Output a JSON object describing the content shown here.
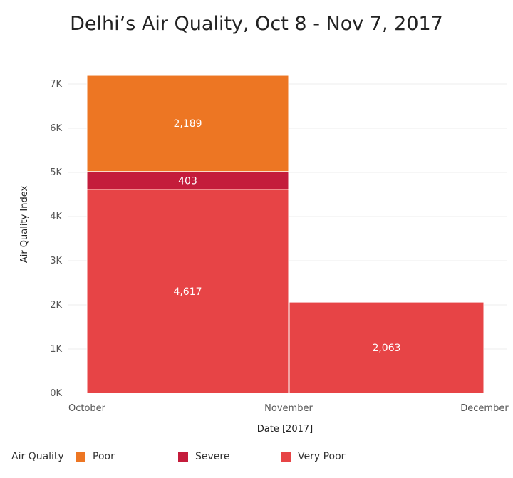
{
  "chart_data": {
    "type": "bar",
    "title": "Delhi’s Air Quality, Oct 8 - Nov 7, 2017",
    "xlabel": "Date [2017]",
    "ylabel": "Air Quality Index",
    "ylim": [
      0,
      7500
    ],
    "y_ticks": [
      "0K",
      "1K",
      "2K",
      "3K",
      "4K",
      "5K",
      "6K",
      "7K"
    ],
    "y_tick_values": [
      0,
      1000,
      2000,
      3000,
      4000,
      5000,
      6000,
      7000
    ],
    "x_ticks": [
      "October",
      "November",
      "December"
    ],
    "stacked": true,
    "grid": true,
    "legend": {
      "title": "Air Quality",
      "placement": "bottom",
      "items": [
        {
          "label": "Poor",
          "color": "#ED7623"
        },
        {
          "label": "Severe",
          "color": "#C41C3B"
        },
        {
          "label": "Very Poor",
          "color": "#E74446"
        }
      ]
    },
    "categories": [
      "October",
      "November"
    ],
    "series": [
      {
        "name": "Very Poor",
        "color": "#E74446",
        "values": [
          4617,
          2063
        ],
        "labels": [
          "4,617",
          "2,063"
        ]
      },
      {
        "name": "Severe",
        "color": "#C41C3B",
        "values": [
          403,
          null
        ],
        "labels": [
          "403",
          ""
        ]
      },
      {
        "name": "Poor",
        "color": "#ED7623",
        "values": [
          2189,
          null
        ],
        "labels": [
          "2,189",
          ""
        ]
      }
    ]
  }
}
